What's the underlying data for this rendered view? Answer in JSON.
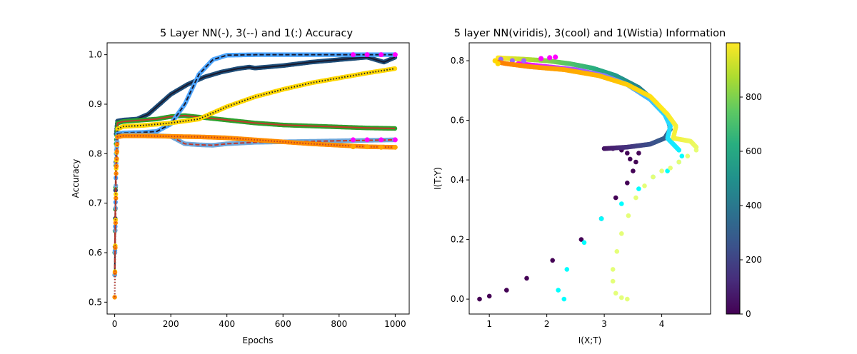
{
  "chart_data": [
    {
      "type": "line",
      "title": "5 Layer NN(-), 3(--) and 1(:) Accuracy",
      "xlabel": "Epochs",
      "ylabel": "Accuracy",
      "xlim": [
        -27,
        1050
      ],
      "ylim": [
        0.476,
        1.024
      ],
      "xticks": [
        0,
        200,
        400,
        600,
        800,
        1000
      ],
      "yticks": [
        0.5,
        0.6,
        0.7,
        0.8,
        0.9,
        1.0
      ],
      "xtick_labels": [
        "0",
        "200",
        "400",
        "600",
        "800",
        "1000"
      ],
      "ytick_labels": [
        "0.5",
        "0.6",
        "0.7",
        "0.8",
        "0.9",
        "1.0"
      ],
      "grid": false,
      "series": [
        {
          "style": "solid",
          "dot_color": "#1f4e79",
          "line_color": "#1a1a2e",
          "x": [
            0,
            5,
            10,
            30,
            80,
            120,
            160,
            200,
            260,
            320,
            380,
            440,
            480,
            500,
            600,
            700,
            800,
            900,
            960,
            1000
          ],
          "y": [
            0.555,
            0.84,
            0.866,
            0.868,
            0.87,
            0.88,
            0.9,
            0.92,
            0.94,
            0.955,
            0.965,
            0.972,
            0.975,
            0.973,
            0.978,
            0.985,
            0.99,
            0.995,
            0.985,
            0.995
          ]
        },
        {
          "style": "solid",
          "dot_color": "#2ca02c",
          "line_color": "#c0392b",
          "x": [
            0,
            5,
            10,
            30,
            100,
            150,
            200,
            250,
            300,
            400,
            500,
            600,
            700,
            800,
            900,
            1000
          ],
          "y": [
            0.6,
            0.82,
            0.862,
            0.865,
            0.868,
            0.87,
            0.875,
            0.877,
            0.874,
            0.868,
            0.862,
            0.858,
            0.856,
            0.854,
            0.852,
            0.851
          ]
        },
        {
          "style": "dashed",
          "dot_color": "#4da6ff",
          "line_color": "#1a1a2e",
          "x": [
            0,
            5,
            10,
            30,
            100,
            150,
            200,
            250,
            300,
            350,
            400,
            500,
            600,
            800,
            1000
          ],
          "y": [
            0.555,
            0.8,
            0.84,
            0.842,
            0.843,
            0.845,
            0.86,
            0.9,
            0.96,
            0.99,
            0.999,
            1.0,
            1.0,
            1.0,
            1.0
          ]
        },
        {
          "style": "dashed",
          "dot_color": "#6fa8dc",
          "line_color": "#c0392b",
          "x": [
            0,
            5,
            10,
            30,
            100,
            200,
            250,
            300,
            350,
            400,
            500,
            600,
            800,
            1000
          ],
          "y": [
            0.555,
            0.78,
            0.835,
            0.838,
            0.838,
            0.835,
            0.82,
            0.818,
            0.817,
            0.82,
            0.823,
            0.824,
            0.826,
            0.828
          ]
        },
        {
          "style": "dotted",
          "dot_color": "#ffd700",
          "line_color": "#1a1a2e",
          "x": [
            0,
            5,
            10,
            30,
            100,
            200,
            300,
            400,
            500,
            600,
            700,
            800,
            900,
            1000
          ],
          "y": [
            0.51,
            0.77,
            0.85,
            0.855,
            0.857,
            0.862,
            0.87,
            0.895,
            0.915,
            0.93,
            0.943,
            0.953,
            0.963,
            0.972
          ]
        },
        {
          "style": "dotted",
          "dot_color": "#ff8c00",
          "line_color": "#c0392b",
          "x": [
            0,
            5,
            10,
            30,
            100,
            200,
            300,
            400,
            500,
            600,
            700,
            800,
            900,
            1000
          ],
          "y": [
            0.51,
            0.76,
            0.834,
            0.836,
            0.836,
            0.835,
            0.834,
            0.832,
            0.828,
            0.824,
            0.82,
            0.817,
            0.814,
            0.813
          ]
        }
      ],
      "end_markers": [
        {
          "color": "#ff00ff",
          "x": [
            850,
            900,
            950,
            1000
          ],
          "y": [
            1.0,
            1.0,
            1.0,
            1.0
          ]
        },
        {
          "color": "#ff00ff",
          "x": [
            850,
            900,
            950,
            1000
          ],
          "y": [
            0.828,
            0.828,
            0.828,
            0.828
          ]
        },
        {
          "color": "#ffa500",
          "x": [
            850,
            900,
            950,
            1000
          ],
          "y": [
            0.814,
            0.814,
            0.813,
            0.813
          ]
        }
      ]
    },
    {
      "type": "scatter",
      "title": "5 layer NN(viridis), 3(cool) and 1(Wistia) Information",
      "xlabel": "I(X;T)",
      "ylabel": "I(T;Y)",
      "xlim": [
        0.65,
        4.85
      ],
      "ylim": [
        -0.05,
        0.86
      ],
      "xticks": [
        1,
        2,
        3,
        4
      ],
      "yticks": [
        0.0,
        0.2,
        0.4,
        0.6,
        0.8
      ],
      "xtick_labels": [
        "1",
        "2",
        "3",
        "4"
      ],
      "ytick_labels": [
        "0.0",
        "0.2",
        "0.4",
        "0.6",
        "0.8"
      ],
      "colorbar": {
        "min": 0,
        "max": 1000,
        "ticks": [
          0,
          200,
          400,
          600,
          800
        ],
        "tick_labels": [
          "0",
          "200",
          "400",
          "600",
          "800"
        ],
        "colormap": "viridis"
      },
      "series": [
        {
          "colormap": "viridis",
          "early_points": [
            [
              0.83,
              0.0
            ],
            [
              1.0,
              0.01
            ],
            [
              1.3,
              0.03
            ],
            [
              1.65,
              0.07
            ],
            [
              2.1,
              0.13
            ],
            [
              2.6,
              0.2
            ],
            [
              2.95,
              0.27
            ],
            [
              3.2,
              0.34
            ],
            [
              3.4,
              0.39
            ],
            [
              3.5,
              0.43
            ],
            [
              3.55,
              0.46
            ],
            [
              3.6,
              0.49
            ],
            [
              3.45,
              0.47
            ],
            [
              3.4,
              0.49
            ],
            [
              3.3,
              0.5
            ],
            [
              3.15,
              0.505
            ],
            [
              3.0,
              0.505
            ]
          ],
          "trajectory": [
            [
              3.0,
              0.505
            ],
            [
              3.4,
              0.51
            ],
            [
              3.8,
              0.52
            ],
            [
              4.05,
              0.54
            ],
            [
              4.15,
              0.57
            ],
            [
              4.1,
              0.61
            ],
            [
              3.9,
              0.66
            ],
            [
              3.6,
              0.71
            ],
            [
              3.2,
              0.75
            ],
            [
              2.8,
              0.775
            ],
            [
              2.4,
              0.79
            ],
            [
              2.0,
              0.8
            ],
            [
              1.6,
              0.805
            ],
            [
              1.3,
              0.808
            ],
            [
              1.15,
              0.81
            ]
          ],
          "end_color": "#ff00ff",
          "end_points": [
            [
              1.9,
              0.807
            ],
            [
              2.05,
              0.81
            ],
            [
              2.15,
              0.812
            ]
          ]
        },
        {
          "colormap": "cool",
          "early_points": [
            [
              2.3,
              0.0
            ],
            [
              2.2,
              0.03
            ],
            [
              2.35,
              0.1
            ],
            [
              2.65,
              0.19
            ],
            [
              2.95,
              0.27
            ],
            [
              3.3,
              0.32
            ],
            [
              3.6,
              0.37
            ],
            [
              3.85,
              0.41
            ],
            [
              4.1,
              0.43
            ],
            [
              4.3,
              0.46
            ],
            [
              4.35,
              0.48
            ],
            [
              4.3,
              0.5
            ]
          ],
          "trajectory": [
            [
              4.3,
              0.5
            ],
            [
              4.1,
              0.54
            ],
            [
              4.15,
              0.58
            ],
            [
              4.05,
              0.62
            ],
            [
              3.8,
              0.67
            ],
            [
              3.4,
              0.72
            ],
            [
              3.0,
              0.75
            ],
            [
              2.5,
              0.77
            ],
            [
              2.0,
              0.78
            ],
            [
              1.5,
              0.79
            ]
          ],
          "end_color": "#9966ff",
          "end_points": [
            [
              1.2,
              0.805
            ],
            [
              1.4,
              0.8
            ],
            [
              1.6,
              0.8
            ]
          ]
        },
        {
          "colormap": "Wistia",
          "early_points": [
            [
              3.4,
              0.0
            ],
            [
              3.3,
              0.005
            ],
            [
              3.2,
              0.02
            ],
            [
              3.15,
              0.06
            ],
            [
              3.15,
              0.1
            ],
            [
              3.22,
              0.16
            ],
            [
              3.3,
              0.22
            ],
            [
              3.42,
              0.28
            ],
            [
              3.55,
              0.34
            ],
            [
              3.7,
              0.38
            ],
            [
              3.85,
              0.41
            ],
            [
              4.0,
              0.43
            ],
            [
              4.15,
              0.44
            ],
            [
              4.3,
              0.46
            ],
            [
              4.45,
              0.48
            ],
            [
              4.6,
              0.5
            ]
          ],
          "trajectory": [
            [
              4.6,
              0.51
            ],
            [
              4.5,
              0.53
            ],
            [
              4.2,
              0.54
            ],
            [
              4.25,
              0.58
            ],
            [
              4.1,
              0.62
            ],
            [
              3.8,
              0.68
            ],
            [
              3.4,
              0.72
            ],
            [
              2.9,
              0.75
            ],
            [
              2.3,
              0.77
            ],
            [
              1.7,
              0.78
            ],
            [
              1.3,
              0.79
            ],
            [
              1.15,
              0.795
            ]
          ],
          "end_color": "#ffd700",
          "end_points": [
            [
              1.1,
              0.8
            ],
            [
              1.15,
              0.79
            ]
          ]
        }
      ]
    }
  ]
}
